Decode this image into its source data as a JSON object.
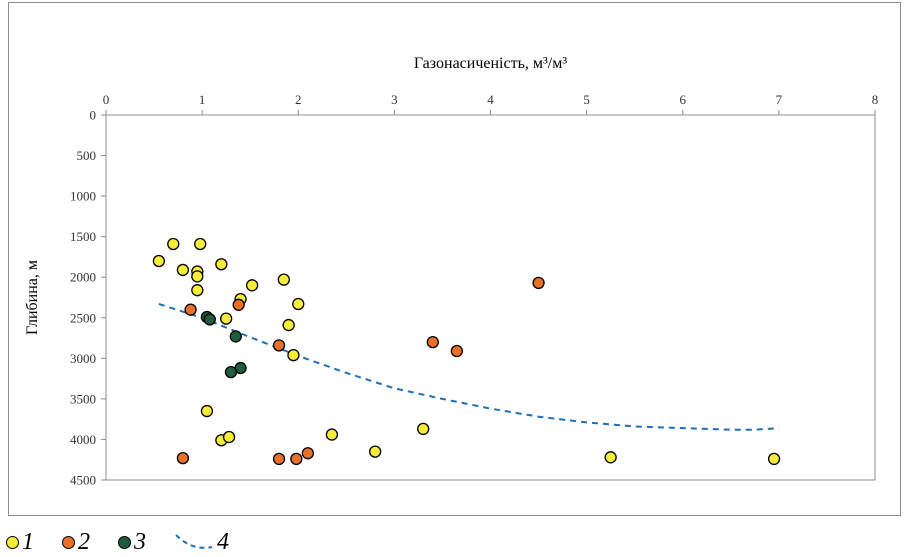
{
  "chart_data": {
    "type": "scatter",
    "title": "",
    "xlabel": "Газонасиченість, м³/м³",
    "ylabel": "Глибина, м",
    "x_axis_position": "top",
    "y_reversed": true,
    "xlim": [
      0,
      8
    ],
    "ylim": [
      0,
      4500
    ],
    "x_ticks": [
      "0",
      "1",
      "2",
      "3",
      "4",
      "5",
      "6",
      "7",
      "8"
    ],
    "y_ticks": [
      "0",
      "500",
      "1000",
      "1500",
      "2000",
      "2500",
      "3000",
      "3500",
      "4000",
      "4500"
    ],
    "grid": false,
    "legend_position": "bottom",
    "series": [
      {
        "name": "1",
        "kind": "points",
        "color": "#f5ec3c",
        "points": [
          [
            0.55,
            1800
          ],
          [
            0.7,
            1590
          ],
          [
            0.8,
            1910
          ],
          [
            0.95,
            1930
          ],
          [
            0.98,
            1590
          ],
          [
            0.95,
            1990
          ],
          [
            0.95,
            2160
          ],
          [
            1.2,
            1840
          ],
          [
            1.4,
            2270
          ],
          [
            1.52,
            2100
          ],
          [
            1.85,
            2030
          ],
          [
            2.0,
            2330
          ],
          [
            1.25,
            2510
          ],
          [
            1.9,
            2590
          ],
          [
            1.95,
            2960
          ],
          [
            1.05,
            3650
          ],
          [
            1.2,
            4010
          ],
          [
            1.28,
            3970
          ],
          [
            2.35,
            3940
          ],
          [
            2.8,
            4150
          ],
          [
            3.3,
            3870
          ],
          [
            5.25,
            4220
          ],
          [
            6.95,
            4240
          ]
        ]
      },
      {
        "name": "2",
        "kind": "points",
        "color": "#e8702a",
        "points": [
          [
            0.88,
            2400
          ],
          [
            1.38,
            2340
          ],
          [
            1.8,
            2840
          ],
          [
            3.4,
            2800
          ],
          [
            3.65,
            2910
          ],
          [
            4.5,
            2070
          ],
          [
            0.8,
            4230
          ],
          [
            1.8,
            4240
          ],
          [
            1.98,
            4240
          ],
          [
            2.1,
            4170
          ]
        ]
      },
      {
        "name": "3",
        "kind": "points",
        "color": "#1f5c3d",
        "points": [
          [
            1.05,
            2490
          ],
          [
            1.08,
            2520
          ],
          [
            1.35,
            2730
          ],
          [
            1.4,
            3120
          ],
          [
            1.3,
            3170
          ]
        ]
      },
      {
        "name": "4",
        "kind": "line",
        "color": "#1f6fb5",
        "points": [
          [
            0.55,
            2330
          ],
          [
            1.0,
            2500
          ],
          [
            1.5,
            2740
          ],
          [
            2.0,
            2970
          ],
          [
            2.5,
            3180
          ],
          [
            3.0,
            3370
          ],
          [
            3.5,
            3500
          ],
          [
            4.0,
            3620
          ],
          [
            4.5,
            3720
          ],
          [
            5.0,
            3790
          ],
          [
            5.5,
            3840
          ],
          [
            6.0,
            3860
          ],
          [
            6.5,
            3880
          ],
          [
            6.75,
            3880
          ],
          [
            7.0,
            3860
          ]
        ]
      }
    ]
  }
}
